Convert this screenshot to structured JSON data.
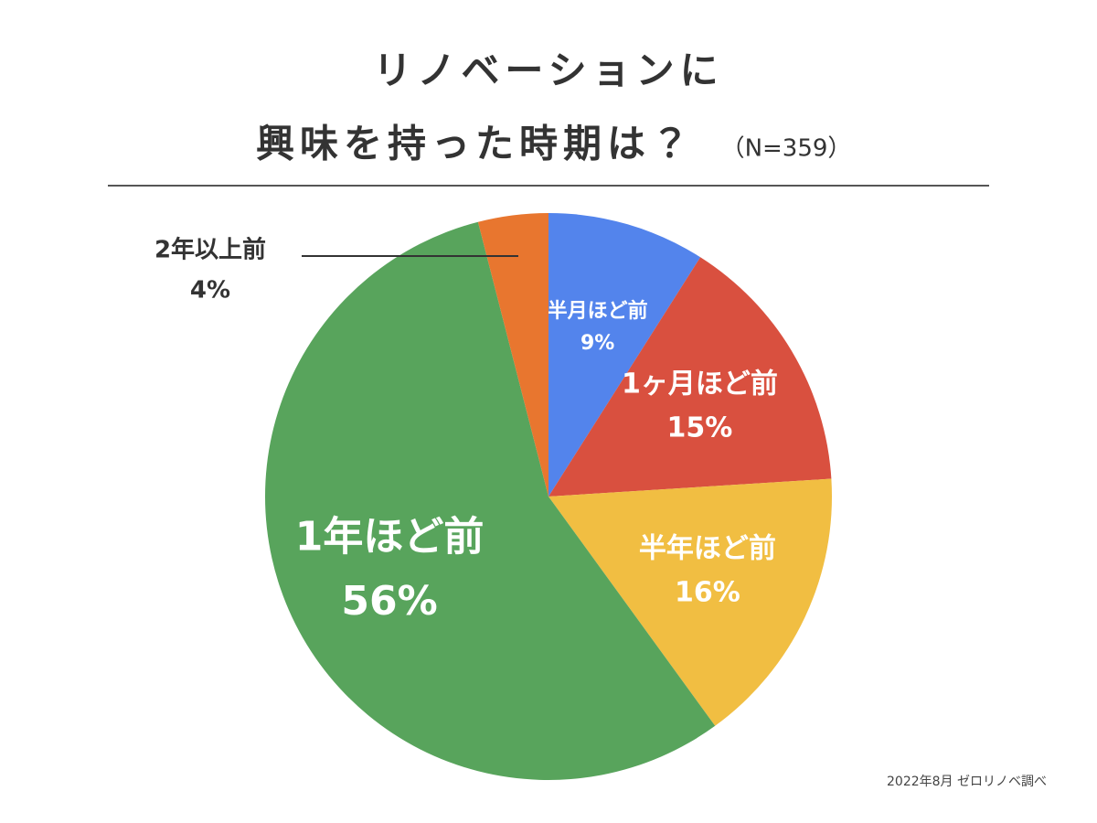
{
  "chart_data": {
    "type": "pie",
    "title": [
      "リノベーションに",
      "興味を持った時期は？"
    ],
    "subtitle": "（N=359）",
    "source": "2022年8月 ゼロリノベ調べ",
    "categories": [
      "半月ほど前",
      "1ヶ月ほど前",
      "半年ほど前",
      "1年ほど前",
      "2年以上前"
    ],
    "values": [
      9,
      15,
      16,
      56,
      4
    ],
    "value_labels": [
      "9%",
      "15%",
      "16%",
      "56%",
      "4%"
    ],
    "colors": [
      "#5384ec",
      "#d9503f",
      "#f1be42",
      "#58a45c",
      "#e8762f"
    ]
  }
}
